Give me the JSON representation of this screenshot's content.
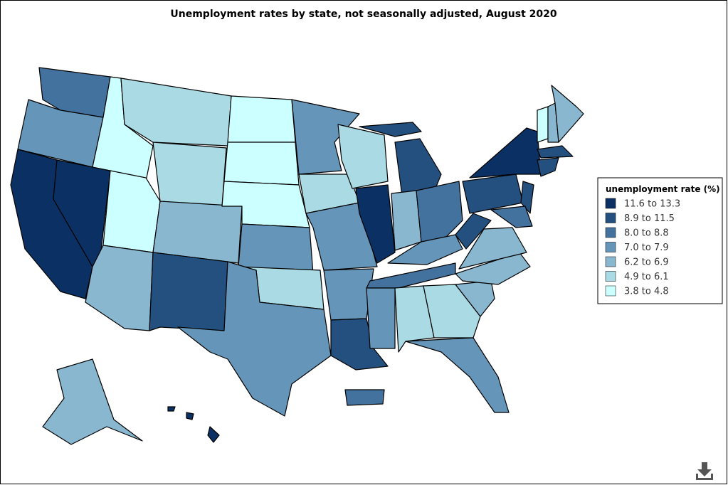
{
  "title": "Unemployment rates by state, not seasonally adjusted, August 2020",
  "legend": {
    "title": "unemployment rate (%)",
    "items": [
      {
        "label": "11.6 to 13.3",
        "color": "#0b3063"
      },
      {
        "label": "8.9 to 11.5",
        "color": "#23507f"
      },
      {
        "label": "8.0 to 8.8",
        "color": "#43729f"
      },
      {
        "label": "7.0 to 7.9",
        "color": "#6595b8"
      },
      {
        "label": "6.2 to 6.9",
        "color": "#88b7cf"
      },
      {
        "label": "4.9 to 6.1",
        "color": "#aadbe5"
      },
      {
        "label": "3.8 to 4.8",
        "color": "#ccffff"
      }
    ]
  }
}
